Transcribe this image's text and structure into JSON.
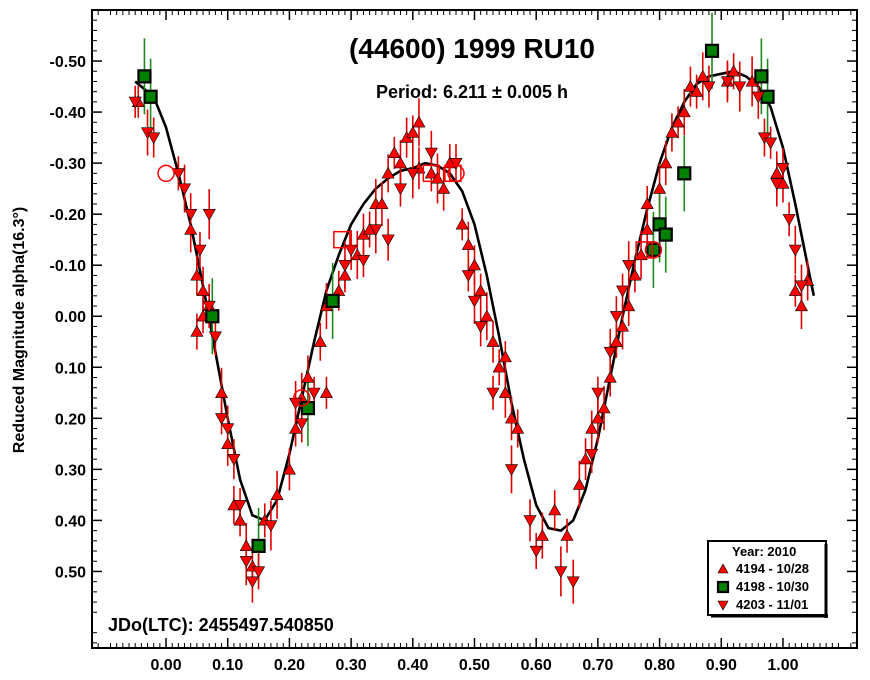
{
  "chart_data": {
    "type": "scatter",
    "title": "(44600) 1999 RU10",
    "subtitle": "Period: 6.211 ± 0.005 h",
    "ylabel": "Reduced Magnitude alpha(16.3°)",
    "xlabel": "",
    "annotation": "JDo(LTC): 2455497.540850",
    "xlim": [
      -0.12,
      1.12
    ],
    "ylim": [
      -0.6,
      0.65
    ],
    "y_inverted": true,
    "x_ticks": [
      "0.00",
      "0.10",
      "0.20",
      "0.30",
      "0.40",
      "0.50",
      "0.60",
      "0.70",
      "0.80",
      "0.90",
      "1.00"
    ],
    "y_ticks": [
      "-0.50",
      "-0.40",
      "-0.30",
      "-0.20",
      "-0.10",
      "0.00",
      "0.10",
      "0.20",
      "0.30",
      "0.40",
      "0.50"
    ],
    "legend": {
      "title": "Year: 2010",
      "placement": "bottom-right",
      "entries": [
        {
          "label": "4194 - 10/28",
          "marker": "triangle-up",
          "color": "#ff0000"
        },
        {
          "label": "4198 - 10/30",
          "marker": "square",
          "color": "#008000"
        },
        {
          "label": "4203 - 11/01",
          "marker": "triangle-down",
          "color": "#ff0000"
        }
      ]
    },
    "fit_curve": [
      [
        -0.05,
        -0.46
      ],
      [
        -0.02,
        -0.43
      ],
      [
        0.0,
        -0.37
      ],
      [
        0.02,
        -0.28
      ],
      [
        0.04,
        -0.18
      ],
      [
        0.06,
        -0.06
      ],
      [
        0.08,
        0.07
      ],
      [
        0.1,
        0.2
      ],
      [
        0.12,
        0.32
      ],
      [
        0.14,
        0.39
      ],
      [
        0.16,
        0.4
      ],
      [
        0.18,
        0.36
      ],
      [
        0.2,
        0.27
      ],
      [
        0.22,
        0.16
      ],
      [
        0.24,
        0.05
      ],
      [
        0.26,
        -0.05
      ],
      [
        0.28,
        -0.12
      ],
      [
        0.3,
        -0.18
      ],
      [
        0.32,
        -0.22
      ],
      [
        0.34,
        -0.25
      ],
      [
        0.36,
        -0.27
      ],
      [
        0.38,
        -0.285
      ],
      [
        0.4,
        -0.29
      ],
      [
        0.42,
        -0.3
      ],
      [
        0.44,
        -0.295
      ],
      [
        0.46,
        -0.28
      ],
      [
        0.48,
        -0.245
      ],
      [
        0.5,
        -0.18
      ],
      [
        0.52,
        -0.08
      ],
      [
        0.54,
        0.04
      ],
      [
        0.56,
        0.17
      ],
      [
        0.58,
        0.28
      ],
      [
        0.6,
        0.37
      ],
      [
        0.62,
        0.415
      ],
      [
        0.64,
        0.42
      ],
      [
        0.66,
        0.4
      ],
      [
        0.68,
        0.34
      ],
      [
        0.7,
        0.24
      ],
      [
        0.72,
        0.12
      ],
      [
        0.74,
        0.0
      ],
      [
        0.76,
        -0.11
      ],
      [
        0.78,
        -0.21
      ],
      [
        0.8,
        -0.3
      ],
      [
        0.82,
        -0.37
      ],
      [
        0.84,
        -0.42
      ],
      [
        0.86,
        -0.455
      ],
      [
        0.88,
        -0.47
      ],
      [
        0.9,
        -0.475
      ],
      [
        0.92,
        -0.48
      ],
      [
        0.94,
        -0.47
      ],
      [
        0.96,
        -0.45
      ],
      [
        0.98,
        -0.41
      ],
      [
        1.0,
        -0.33
      ],
      [
        1.02,
        -0.22
      ],
      [
        1.04,
        -0.1
      ],
      [
        1.05,
        -0.04
      ]
    ],
    "series": [
      {
        "name": "4194 - 10/28",
        "marker": "triangle-up",
        "color": "#ff0000",
        "points": [
          [
            -0.045,
            -0.42
          ],
          [
            0.04,
            -0.17
          ],
          [
            0.05,
            -0.08
          ],
          [
            0.06,
            0.0
          ],
          [
            0.06,
            -0.05
          ],
          [
            0.07,
            -0.02
          ],
          [
            0.05,
            0.03
          ],
          [
            0.09,
            0.15
          ],
          [
            0.1,
            0.25
          ],
          [
            0.11,
            0.37
          ],
          [
            0.12,
            0.4
          ],
          [
            0.13,
            0.45
          ],
          [
            0.14,
            0.49
          ],
          [
            0.16,
            0.4
          ],
          [
            0.18,
            0.35
          ],
          [
            0.2,
            0.3
          ],
          [
            0.21,
            0.22
          ],
          [
            0.22,
            0.16
          ],
          [
            0.23,
            0.12
          ],
          [
            0.25,
            0.05
          ],
          [
            0.26,
            0.15
          ],
          [
            0.26,
            -0.02
          ],
          [
            0.28,
            -0.05
          ],
          [
            0.29,
            -0.08
          ],
          [
            0.31,
            -0.12
          ],
          [
            0.32,
            -0.16
          ],
          [
            0.33,
            -0.17
          ],
          [
            0.34,
            -0.22
          ],
          [
            0.35,
            -0.22
          ],
          [
            0.36,
            -0.28
          ],
          [
            0.37,
            -0.32
          ],
          [
            0.38,
            -0.3
          ],
          [
            0.39,
            -0.35
          ],
          [
            0.4,
            -0.36
          ],
          [
            0.41,
            -0.38
          ],
          [
            0.41,
            -0.29
          ],
          [
            0.43,
            -0.28
          ],
          [
            0.44,
            -0.27
          ],
          [
            0.45,
            -0.25
          ],
          [
            0.46,
            -0.3
          ],
          [
            0.48,
            -0.18
          ],
          [
            0.49,
            -0.14
          ],
          [
            0.5,
            -0.1
          ],
          [
            0.51,
            -0.05
          ],
          [
            0.52,
            0.0
          ],
          [
            0.53,
            0.05
          ],
          [
            0.54,
            0.1
          ],
          [
            0.55,
            0.15
          ],
          [
            0.56,
            0.2
          ],
          [
            0.57,
            0.22
          ],
          [
            0.55,
            0.08
          ],
          [
            0.61,
            0.43
          ],
          [
            0.63,
            0.38
          ],
          [
            0.65,
            0.43
          ],
          [
            0.67,
            0.33
          ],
          [
            0.68,
            0.28
          ],
          [
            0.69,
            0.22
          ],
          [
            0.7,
            0.2
          ],
          [
            0.71,
            0.18
          ],
          [
            0.72,
            0.12
          ],
          [
            0.73,
            0.05
          ],
          [
            0.74,
            0.02
          ],
          [
            0.75,
            -0.02
          ],
          [
            0.76,
            -0.08
          ],
          [
            0.77,
            -0.12
          ],
          [
            0.78,
            -0.17
          ],
          [
            0.78,
            -0.22
          ],
          [
            0.8,
            -0.25
          ],
          [
            0.81,
            -0.3
          ],
          [
            0.82,
            -0.36
          ],
          [
            0.83,
            -0.38
          ],
          [
            0.84,
            -0.4
          ],
          [
            0.85,
            -0.45
          ],
          [
            0.86,
            -0.44
          ],
          [
            0.87,
            -0.47
          ],
          [
            0.91,
            -0.46
          ],
          [
            0.92,
            -0.48
          ],
          [
            0.95,
            -0.46
          ],
          [
            0.99,
            -0.28
          ],
          [
            1.0,
            -0.26
          ],
          [
            1.02,
            -0.05
          ],
          [
            1.03,
            -0.02
          ],
          [
            1.04,
            -0.07
          ]
        ]
      },
      {
        "name": "4198 - 10/30",
        "marker": "square",
        "color": "#008000",
        "points": [
          [
            -0.035,
            -0.47
          ],
          [
            -0.025,
            -0.43
          ],
          [
            0.075,
            0.0
          ],
          [
            0.15,
            0.45
          ],
          [
            0.23,
            0.18
          ],
          [
            0.27,
            -0.03
          ],
          [
            0.79,
            -0.13
          ],
          [
            0.8,
            -0.18
          ],
          [
            0.81,
            -0.16
          ],
          [
            0.84,
            -0.28
          ],
          [
            0.885,
            -0.52
          ],
          [
            0.965,
            -0.47
          ],
          [
            0.975,
            -0.43
          ]
        ]
      },
      {
        "name": "4203 - 11/01",
        "marker": "triangle-down",
        "color": "#ff0000",
        "points": [
          [
            -0.05,
            -0.42
          ],
          [
            -0.03,
            -0.36
          ],
          [
            -0.02,
            -0.35
          ],
          [
            0.02,
            -0.28
          ],
          [
            0.03,
            -0.25
          ],
          [
            0.04,
            -0.2
          ],
          [
            0.055,
            -0.13
          ],
          [
            0.07,
            -0.2
          ],
          [
            0.07,
            -0.02
          ],
          [
            0.08,
            0.04
          ],
          [
            0.09,
            0.2
          ],
          [
            0.1,
            0.22
          ],
          [
            0.11,
            0.28
          ],
          [
            0.12,
            0.37
          ],
          [
            0.13,
            0.48
          ],
          [
            0.14,
            0.52
          ],
          [
            0.15,
            0.5
          ],
          [
            0.17,
            0.41
          ],
          [
            0.21,
            0.17
          ],
          [
            0.22,
            0.21
          ],
          [
            0.24,
            0.15
          ],
          [
            0.29,
            -0.1
          ],
          [
            0.3,
            -0.13
          ],
          [
            0.32,
            -0.11
          ],
          [
            0.34,
            -0.17
          ],
          [
            0.36,
            -0.15
          ],
          [
            0.38,
            -0.25
          ],
          [
            0.4,
            -0.28
          ],
          [
            0.43,
            -0.32
          ],
          [
            0.47,
            -0.3
          ],
          [
            0.49,
            -0.08
          ],
          [
            0.5,
            -0.03
          ],
          [
            0.51,
            0.02
          ],
          [
            0.53,
            0.15
          ],
          [
            0.56,
            0.3
          ],
          [
            0.59,
            0.4
          ],
          [
            0.6,
            0.46
          ],
          [
            0.64,
            0.5
          ],
          [
            0.66,
            0.52
          ],
          [
            0.69,
            0.27
          ],
          [
            0.7,
            0.15
          ],
          [
            0.72,
            0.07
          ],
          [
            0.73,
            0.0
          ],
          [
            0.74,
            -0.05
          ],
          [
            0.75,
            -0.1
          ],
          [
            0.88,
            -0.45
          ],
          [
            0.91,
            -0.46
          ],
          [
            0.93,
            -0.45
          ],
          [
            0.96,
            -0.43
          ],
          [
            0.97,
            -0.35
          ],
          [
            0.98,
            -0.34
          ],
          [
            0.99,
            -0.26
          ],
          [
            1.0,
            -0.29
          ],
          [
            1.01,
            -0.19
          ],
          [
            1.02,
            -0.13
          ],
          [
            1.03,
            -0.06
          ]
        ]
      },
      {
        "name": "",
        "marker": "open-square",
        "color": "#ff0000",
        "points": [
          [
            0.285,
            -0.15
          ],
          [
            0.43,
            -0.28
          ],
          [
            0.465,
            -0.28
          ],
          [
            0.775,
            -0.13
          ]
        ]
      },
      {
        "name": "",
        "marker": "open-circle",
        "color": "#ff0000",
        "points": [
          [
            0.0,
            -0.28
          ],
          [
            0.22,
            0.16
          ],
          [
            0.47,
            -0.28
          ],
          [
            0.79,
            -0.13
          ]
        ]
      }
    ]
  }
}
